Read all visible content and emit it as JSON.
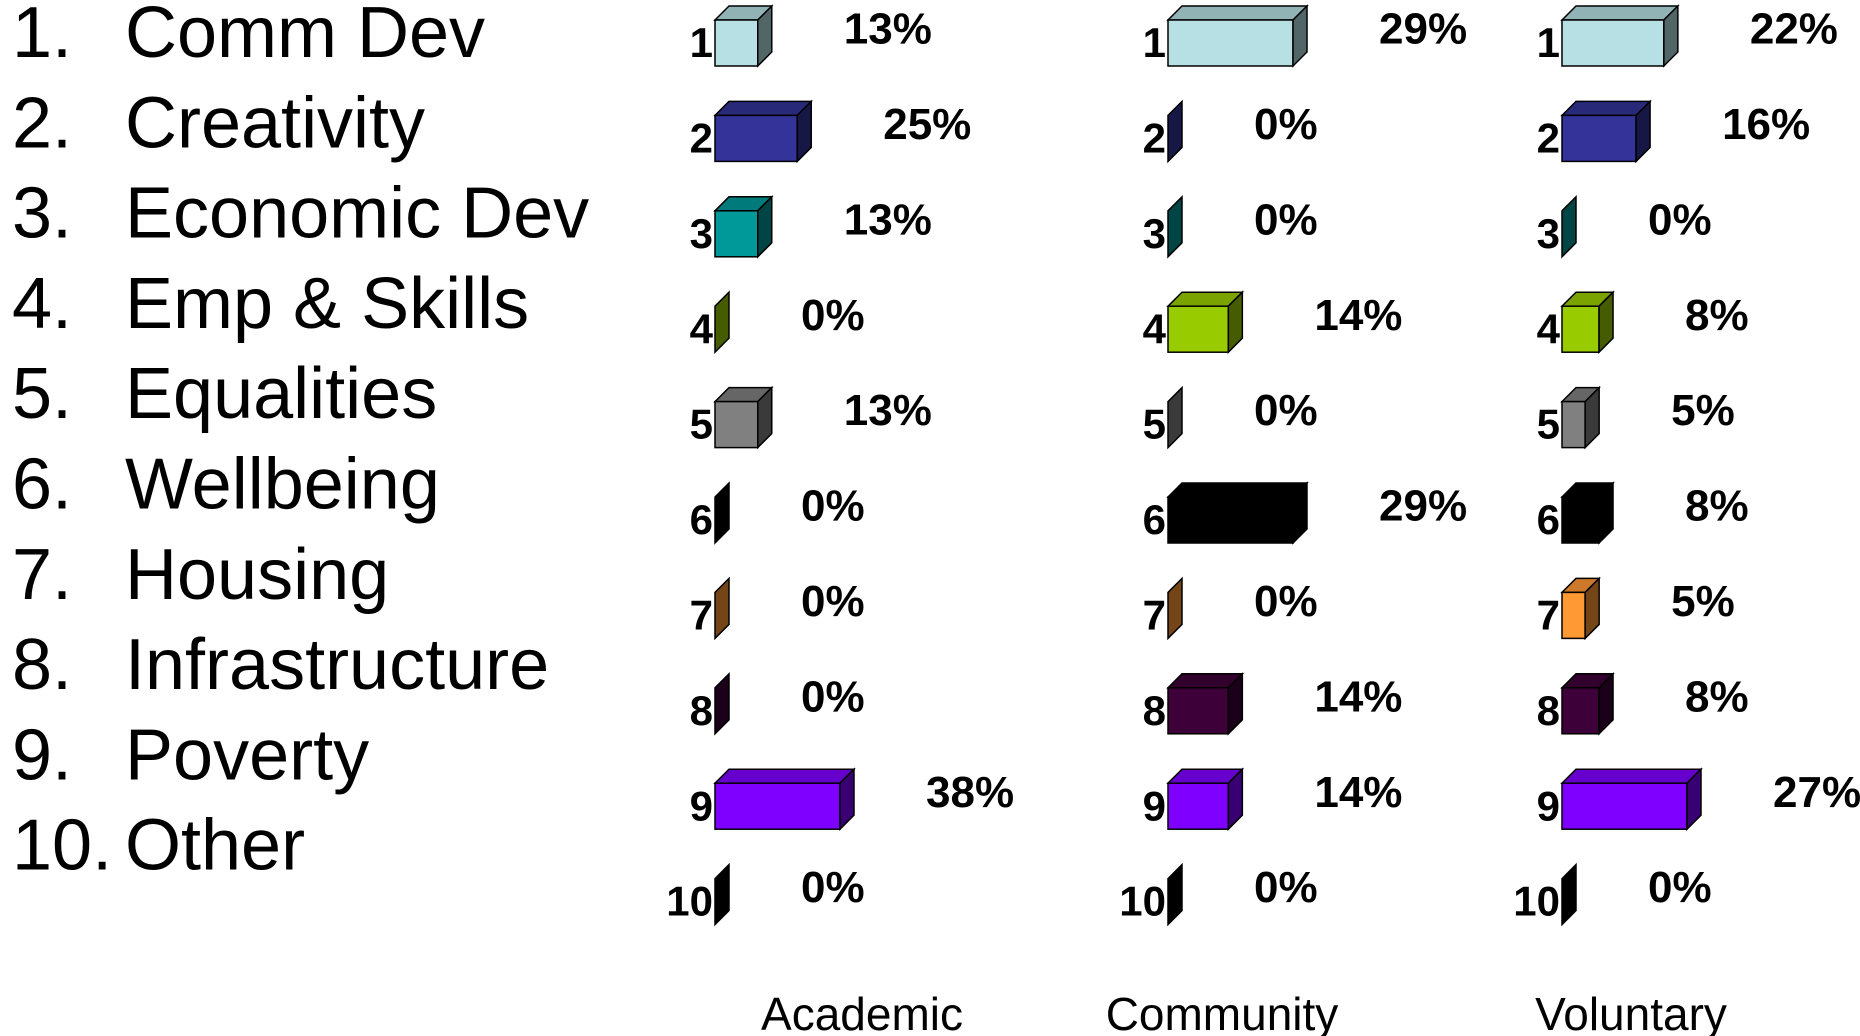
{
  "legend": {
    "items": [
      {
        "number": "1.",
        "label": "Comm Dev"
      },
      {
        "number": "2.",
        "label": "Creativity"
      },
      {
        "number": "3.",
        "label": "Economic Dev"
      },
      {
        "number": "4.",
        "label": "Emp & Skills"
      },
      {
        "number": "5.",
        "label": "Equalities"
      },
      {
        "number": "6.",
        "label": "Wellbeing"
      },
      {
        "number": "7.",
        "label": "Housing"
      },
      {
        "number": "8.",
        "label": "Infrastructure"
      },
      {
        "number": "9.",
        "label": "Poverty"
      },
      {
        "number": "10.",
        "label": "Other"
      }
    ]
  },
  "chart_data": [
    {
      "type": "bar",
      "title": "Academic",
      "categories": [
        "1",
        "2",
        "3",
        "4",
        "5",
        "6",
        "7",
        "8",
        "9",
        "10"
      ],
      "values": [
        13,
        25,
        13,
        0,
        13,
        0,
        0,
        0,
        38,
        0
      ],
      "value_labels": [
        "13%",
        "25%",
        "13%",
        "0%",
        "13%",
        "0%",
        "0%",
        "0%",
        "38%",
        "0%"
      ],
      "colors": [
        "#b7e0e4",
        "#333399",
        "#009999",
        "#99cc00",
        "#808080",
        "#000000",
        "#ff9933",
        "#3d0038",
        "#7f00ff",
        "#000000"
      ],
      "xlim": [
        0,
        38
      ]
    },
    {
      "type": "bar",
      "title": "Community",
      "categories": [
        "1",
        "2",
        "3",
        "4",
        "5",
        "6",
        "7",
        "8",
        "9",
        "10"
      ],
      "values": [
        29,
        0,
        0,
        14,
        0,
        29,
        0,
        14,
        14,
        0
      ],
      "value_labels": [
        "29%",
        "0%",
        "0%",
        "14%",
        "0%",
        "29%",
        "0%",
        "14%",
        "14%",
        "0%"
      ],
      "colors": [
        "#b7e0e4",
        "#333399",
        "#009999",
        "#99cc00",
        "#808080",
        "#000000",
        "#ff9933",
        "#3d0038",
        "#7f00ff",
        "#000000"
      ],
      "xlim": [
        0,
        29
      ]
    },
    {
      "type": "bar",
      "title": "Voluntary",
      "categories": [
        "1",
        "2",
        "3",
        "4",
        "5",
        "6",
        "7",
        "8",
        "9",
        "10"
      ],
      "values": [
        22,
        16,
        0,
        8,
        5,
        8,
        5,
        8,
        27,
        0
      ],
      "value_labels": [
        "22%",
        "16%",
        "0%",
        "8%",
        "5%",
        "8%",
        "5%",
        "8%",
        "27%",
        "0%"
      ],
      "colors": [
        "#b7e0e4",
        "#333399",
        "#009999",
        "#99cc00",
        "#808080",
        "#000000",
        "#ff9933",
        "#3d0038",
        "#7f00ff",
        "#000000"
      ],
      "xlim": [
        0,
        27
      ]
    }
  ]
}
